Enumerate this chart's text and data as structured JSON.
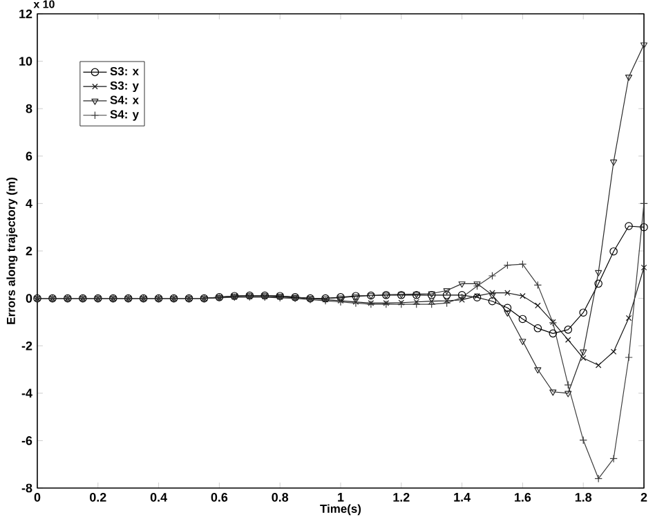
{
  "chart_data": {
    "type": "line",
    "xlabel": "Time(s)",
    "ylabel": "Errors along trajectory (m)",
    "annotations": [
      "x 10"
    ],
    "x": [
      0,
      0.05,
      0.1,
      0.15,
      0.2,
      0.25,
      0.3,
      0.35,
      0.4,
      0.45,
      0.5,
      0.55,
      0.6,
      0.65,
      0.7,
      0.75,
      0.8,
      0.85,
      0.9,
      0.95,
      1,
      1.05,
      1.1,
      1.15,
      1.2,
      1.25,
      1.3,
      1.35,
      1.4,
      1.45,
      1.5,
      1.55,
      1.6,
      1.65,
      1.7,
      1.75,
      1.8,
      1.85,
      1.9,
      1.95,
      2
    ],
    "series": [
      {
        "name": "S3: x",
        "color": "#000000",
        "marker": "circle",
        "values": [
          0,
          0,
          0,
          0,
          0,
          0,
          0,
          0,
          0,
          0,
          0,
          0,
          0.05,
          0.1,
          0.12,
          0.12,
          0.1,
          0.05,
          0,
          0,
          0.05,
          0.1,
          0.12,
          0.14,
          0.14,
          0.14,
          0.14,
          0.14,
          0.14,
          0.04,
          -0.12,
          -0.4,
          -0.87,
          -1.26,
          -1.48,
          -1.32,
          -0.6,
          0.62,
          1.98,
          3.05,
          3.0
        ]
      },
      {
        "name": "S3: y",
        "color": "#141414",
        "marker": "cross",
        "values": [
          0,
          0,
          0,
          0,
          0,
          0,
          0,
          0,
          0,
          0,
          0,
          0,
          0.03,
          0.06,
          0.08,
          0.08,
          0.06,
          0.03,
          0,
          -0.05,
          -0.1,
          -0.15,
          -0.2,
          -0.2,
          -0.18,
          -0.15,
          -0.12,
          -0.1,
          -0.06,
          0.1,
          0.23,
          0.23,
          0.1,
          -0.3,
          -1.0,
          -1.75,
          -2.52,
          -2.82,
          -2.25,
          -0.83,
          1.3
        ]
      },
      {
        "name": "S4: x",
        "color": "#282828",
        "marker": "triangle",
        "values": [
          0,
          0,
          0,
          0,
          0,
          0,
          0,
          0,
          0,
          0,
          0,
          0,
          0.05,
          0.1,
          0.12,
          0.12,
          0.1,
          0.05,
          0,
          0,
          0.03,
          0.08,
          0.12,
          0.15,
          0.17,
          0.18,
          0.2,
          0.33,
          0.62,
          0.62,
          0.14,
          -0.6,
          -1.8,
          -3.0,
          -3.94,
          -4.0,
          -2.25,
          1.1,
          5.76,
          9.34,
          10.7
        ]
      },
      {
        "name": "S4: y",
        "color": "#3c3c3c",
        "marker": "plus",
        "values": [
          0,
          0,
          0,
          0,
          0,
          0,
          0,
          0,
          0,
          0,
          0,
          0,
          0.02,
          0.05,
          0.06,
          0.05,
          0.02,
          0,
          -0.05,
          -0.1,
          -0.15,
          -0.2,
          -0.25,
          -0.25,
          -0.25,
          -0.25,
          -0.25,
          -0.2,
          0.04,
          0.52,
          0.95,
          1.4,
          1.44,
          0.56,
          -1.03,
          -3.65,
          -5.98,
          -7.6,
          -6.76,
          -2.49,
          4.0
        ]
      }
    ],
    "xlim": [
      0,
      2
    ],
    "ylim": [
      -8,
      12
    ],
    "xticks": [
      0,
      0.2,
      0.4,
      0.6,
      0.8,
      1,
      1.2,
      1.4,
      1.6,
      1.8,
      2
    ],
    "yticks": [
      -8,
      -6,
      -4,
      -2,
      0,
      2,
      4,
      6,
      8,
      10,
      12
    ],
    "legend": "top left",
    "grid": false,
    "line_style": "solid"
  }
}
